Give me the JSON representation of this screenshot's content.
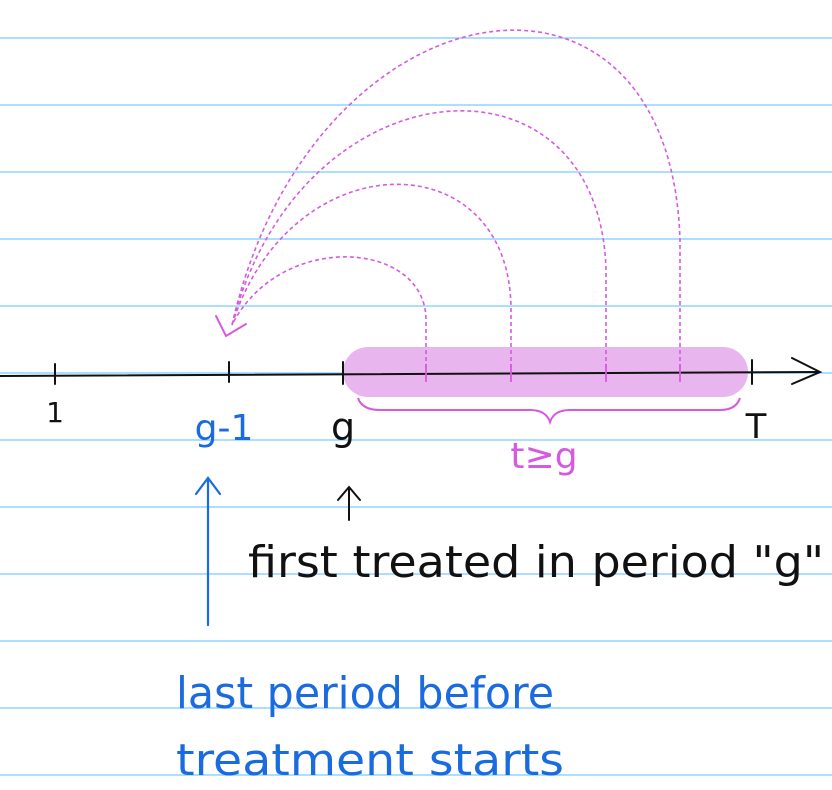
{
  "colors": {
    "ruled_line": "#8fd3ff",
    "ink": "#111111",
    "blue_ink": "#1a6be0",
    "magenta_ink": "#d65ae0",
    "highlight": "#e8b5ee"
  },
  "timeline": {
    "tick_1": "1",
    "tick_g_minus_1": "g-1",
    "tick_g": "g",
    "tick_T": "T",
    "brace_label": "t≥g"
  },
  "annotations": {
    "first_treated": "first treated in period \"g\"",
    "last_period_line1": "last period before",
    "last_period_line2": "treatment starts"
  }
}
